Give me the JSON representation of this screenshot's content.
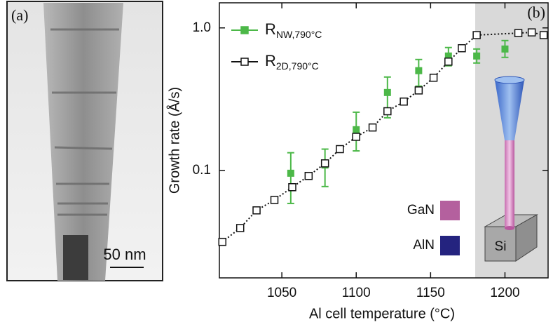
{
  "panel_a": {
    "label": "(a)",
    "scale_bar": "50 nm"
  },
  "chart_data": {
    "type": "scatter",
    "panel_label": "(b)",
    "x_label": "Al cell temperature (°C)",
    "y_label": "Growth rate (Å/s)",
    "xlim": [
      1008,
      1229
    ],
    "xticks": [
      1050,
      1100,
      1150,
      1200
    ],
    "ylim": [
      0.0176,
      1.5
    ],
    "y_log": true,
    "yticks": [
      {
        "value": 1,
        "label": "1.0"
      },
      0.1
    ],
    "shade_start": 1180,
    "shade_color": "#d9d9d9",
    "series": [
      {
        "name": "R",
        "name_sub": "NW,790°C",
        "color": "#4cb848",
        "marker": "filled",
        "x": [
          1056,
          1079,
          1100,
          1121,
          1142,
          1162,
          1181,
          1200
        ],
        "values": [
          0.0955,
          0.109,
          0.193,
          0.352,
          0.501,
          0.635,
          0.635,
          0.711
        ],
        "lower": [
          0.0586,
          0.077,
          0.137,
          0.234,
          0.39,
          0.542,
          0.567,
          0.621
        ],
        "upper": [
          0.133,
          0.141,
          0.256,
          0.452,
          0.6,
          0.728,
          0.711,
          0.815
        ]
      },
      {
        "name": "R",
        "name_sub": "2D,790°C",
        "color": "#111111",
        "marker": "open",
        "line": "dotted",
        "x": [
          1010,
          1022,
          1033,
          1045,
          1057,
          1068,
          1079,
          1089,
          1100,
          1111,
          1121,
          1132,
          1142,
          1152,
          1162,
          1171,
          1181,
          1209,
          1218,
          1226
        ],
        "values": [
          0.0315,
          0.0394,
          0.0524,
          0.062,
          0.0762,
          0.0914,
          0.112,
          0.141,
          0.172,
          0.2,
          0.26,
          0.304,
          0.364,
          0.447,
          0.58,
          0.72,
          0.89,
          0.92,
          0.93,
          0.89
        ]
      }
    ],
    "inset": {
      "substrate": "Si",
      "materials": [
        {
          "label": "GaN",
          "color": "#b4609e"
        },
        {
          "label": "AlN",
          "color": "#24237f"
        }
      ]
    }
  }
}
